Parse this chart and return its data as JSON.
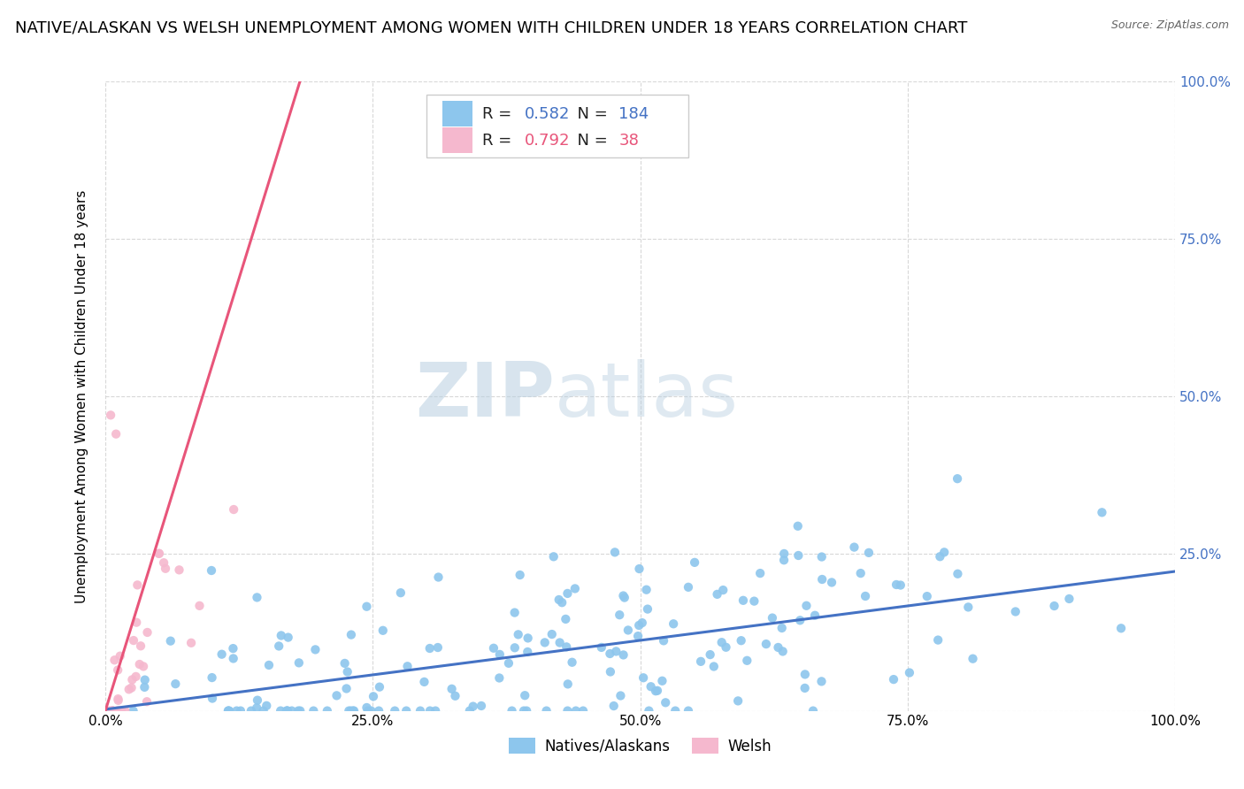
{
  "title": "NATIVE/ALASKAN VS WELSH UNEMPLOYMENT AMONG WOMEN WITH CHILDREN UNDER 18 YEARS CORRELATION CHART",
  "source": "Source: ZipAtlas.com",
  "ylabel": "Unemployment Among Women with Children Under 18 years",
  "xlim": [
    0.0,
    1.0
  ],
  "ylim": [
    0.0,
    1.0
  ],
  "xtick_labels": [
    "0.0%",
    "25.0%",
    "50.0%",
    "75.0%",
    "100.0%"
  ],
  "xtick_positions": [
    0.0,
    0.25,
    0.5,
    0.75,
    1.0
  ],
  "right_ytick_labels": [
    "",
    "25.0%",
    "50.0%",
    "75.0%",
    "100.0%"
  ],
  "right_ytick_positions": [
    0.0,
    0.25,
    0.5,
    0.75,
    1.0
  ],
  "native_color": "#8dc6ed",
  "welsh_color": "#f5b8ce",
  "native_line_color": "#4472c4",
  "welsh_line_color": "#e8557a",
  "native_R": 0.582,
  "native_N": 184,
  "welsh_R": 0.792,
  "welsh_N": 38,
  "watermark_zip": "ZIP",
  "watermark_atlas": "atlas",
  "watermark_color": "#ccd9e8",
  "legend_label_native": "Natives/Alaskans",
  "legend_label_welsh": "Welsh",
  "background_color": "#ffffff",
  "grid_color": "#d8d8d8",
  "title_fontsize": 13,
  "axis_label_fontsize": 11,
  "tick_fontsize": 11,
  "legend_fontsize": 12,
  "r_n_color_native": "#4472c4",
  "r_n_color_welsh": "#e8557a",
  "native_seed": 12,
  "welsh_seed": 99
}
